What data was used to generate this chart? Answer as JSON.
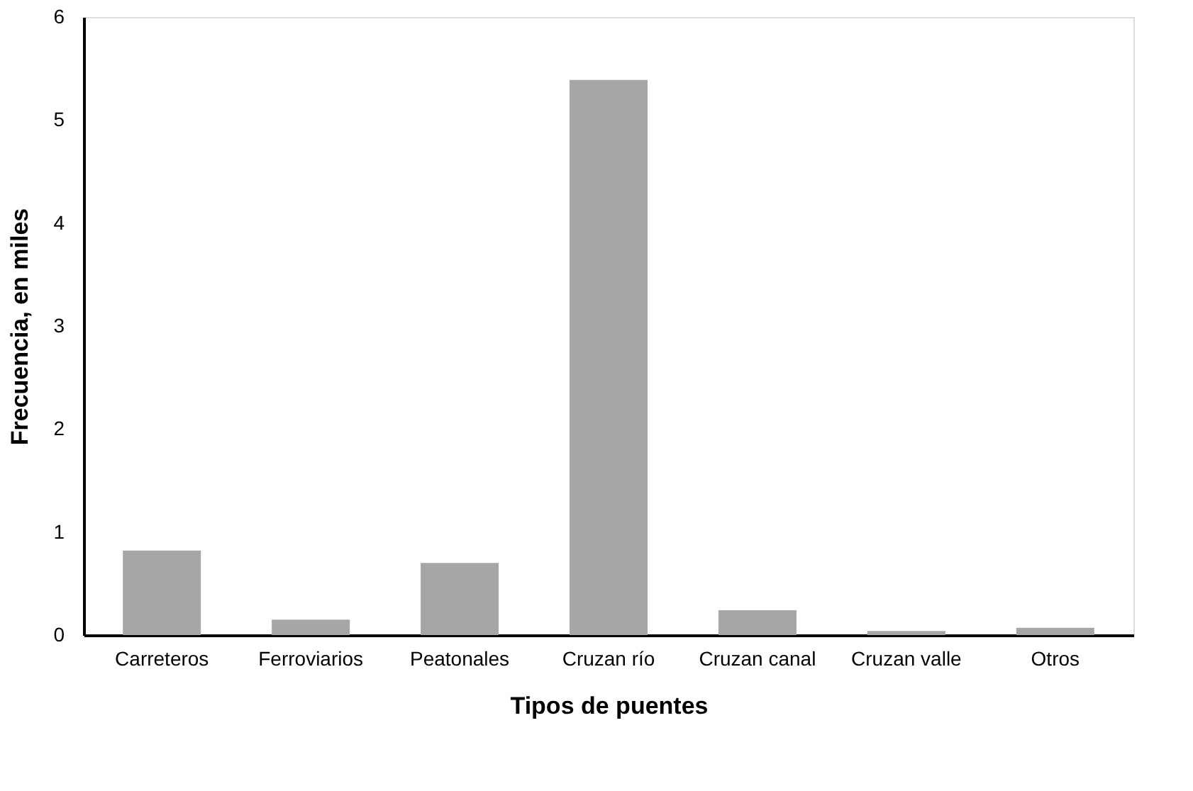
{
  "chart_data": {
    "type": "bar",
    "xlabel": "Tipos de puentes",
    "ylabel": "Frecuencia, en miles",
    "categories": [
      "Carreteros",
      "Ferroviarios",
      "Peatonales",
      "Cruzan río",
      "Cruzan canal",
      "Cruzan valle",
      "Otros"
    ],
    "values": [
      0.82,
      0.15,
      0.7,
      5.39,
      0.24,
      0.04,
      0.07
    ],
    "color": "#a6a6a6",
    "ylim": [
      0,
      6
    ],
    "yticks": [
      0,
      1,
      2,
      3,
      4,
      5,
      6
    ],
    "grid": false
  }
}
